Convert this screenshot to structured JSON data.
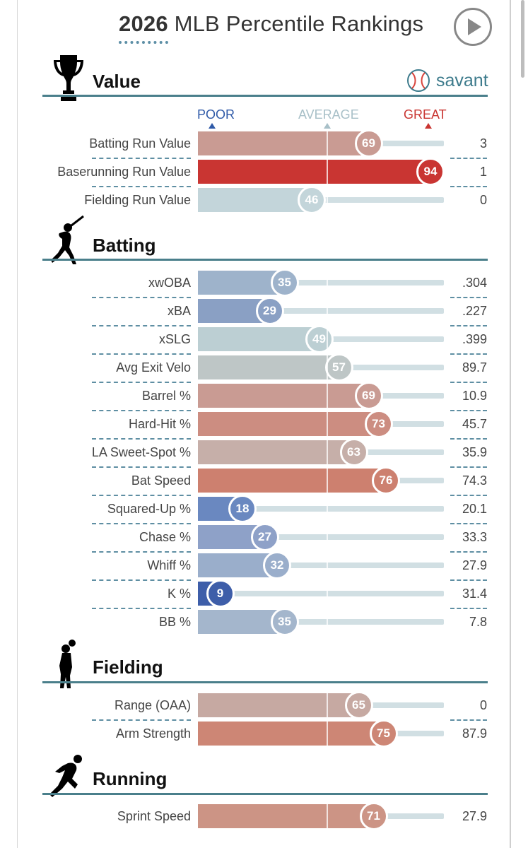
{
  "header": {
    "year": "2026",
    "title_rest": "MLB Percentile Rankings"
  },
  "brand": {
    "name": "savant"
  },
  "scale": {
    "poor": "POOR",
    "average": "AVERAGE",
    "great": "GREAT",
    "colors": {
      "poor": "#2f5aa8",
      "average": "#a8c0c8",
      "great": "#c93531"
    }
  },
  "sections": [
    {
      "title": "Value",
      "icon": "trophy-icon"
    },
    {
      "title": "Batting",
      "icon": "batter-icon"
    },
    {
      "title": "Fielding",
      "icon": "fielder-icon"
    },
    {
      "title": "Running",
      "icon": "runner-icon"
    }
  ],
  "chart_data": {
    "type": "bar",
    "orientation": "horizontal",
    "title": "2026 MLB Percentile Rankings",
    "xlim": [
      0,
      100
    ],
    "groups": [
      {
        "section": "Value",
        "metrics": [
          {
            "label": "Batting Run Value",
            "percentile": 69,
            "stat": "3",
            "color": "#c99b93"
          },
          {
            "label": "Baserunning Run Value",
            "percentile": 94,
            "stat": "1",
            "color": "#c93532"
          },
          {
            "label": "Fielding Run Value",
            "percentile": 46,
            "stat": "0",
            "color": "#c3d5da"
          }
        ]
      },
      {
        "section": "Batting",
        "metrics": [
          {
            "label": "xwOBA",
            "percentile": 35,
            "stat": ".304",
            "color": "#9eb3cb"
          },
          {
            "label": "xBA",
            "percentile": 29,
            "stat": ".227",
            "color": "#8aa0c4"
          },
          {
            "label": "xSLG",
            "percentile": 49,
            "stat": ".399",
            "color": "#bccfd3"
          },
          {
            "label": "Avg Exit Velo",
            "percentile": 57,
            "stat": "89.7",
            "color": "#bec6c6"
          },
          {
            "label": "Barrel %",
            "percentile": 69,
            "stat": "10.9",
            "color": "#c99b93"
          },
          {
            "label": "Hard-Hit %",
            "percentile": 73,
            "stat": "45.7",
            "color": "#cc8d81"
          },
          {
            "label": "LA Sweet-Spot %",
            "percentile": 63,
            "stat": "35.9",
            "color": "#c6afa9"
          },
          {
            "label": "Bat Speed",
            "percentile": 76,
            "stat": "74.3",
            "color": "#cd806f"
          },
          {
            "label": "Squared-Up %",
            "percentile": 18,
            "stat": "20.1",
            "color": "#6a88c0"
          },
          {
            "label": "Chase %",
            "percentile": 27,
            "stat": "33.3",
            "color": "#8ea1c8"
          },
          {
            "label": "Whiff %",
            "percentile": 32,
            "stat": "27.9",
            "color": "#9aaecb"
          },
          {
            "label": "K %",
            "percentile": 9,
            "stat": "31.4",
            "color": "#3e5ea9"
          },
          {
            "label": "BB %",
            "percentile": 35,
            "stat": "7.8",
            "color": "#a4b6cc"
          }
        ]
      },
      {
        "section": "Fielding",
        "metrics": [
          {
            "label": "Range (OAA)",
            "percentile": 65,
            "stat": "0",
            "color": "#c6a9a2"
          },
          {
            "label": "Arm Strength",
            "percentile": 75,
            "stat": "87.9",
            "color": "#cd8675"
          }
        ]
      },
      {
        "section": "Running",
        "metrics": [
          {
            "label": "Sprint Speed",
            "percentile": 71,
            "stat": "27.9",
            "color": "#cc9485"
          }
        ]
      }
    ]
  }
}
